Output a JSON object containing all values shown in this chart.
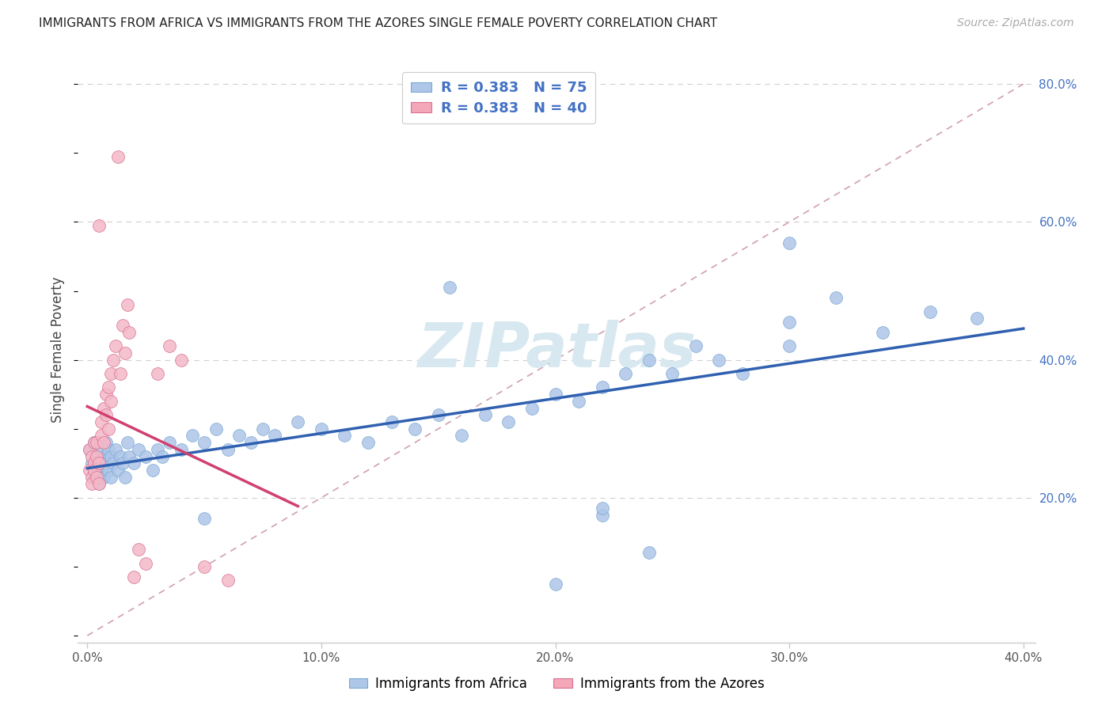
{
  "title": "IMMIGRANTS FROM AFRICA VS IMMIGRANTS FROM THE AZORES SINGLE FEMALE POVERTY CORRELATION CHART",
  "source": "Source: ZipAtlas.com",
  "ylabel": "Single Female Poverty",
  "xlim": [
    0.0,
    0.4
  ],
  "ylim": [
    0.0,
    0.84
  ],
  "xtick_vals": [
    0.0,
    0.1,
    0.2,
    0.3,
    0.4
  ],
  "xtick_labels": [
    "0.0%",
    "10.0%",
    "20.0%",
    "30.0%",
    "40.0%"
  ],
  "ytick_vals_right": [
    0.2,
    0.4,
    0.6,
    0.8
  ],
  "ytick_labels_right": [
    "20.0%",
    "40.0%",
    "60.0%",
    "80.0%"
  ],
  "legend1_color_face": "#aec6e8",
  "legend1_color_edge": "#7aa8d4",
  "legend2_color_face": "#f4a7b9",
  "legend2_color_edge": "#d87090",
  "line1_color": "#3060b0",
  "line2_color": "#d04070",
  "diagonal_color": "#d0a0b0",
  "watermark": "ZIPatlas",
  "scatter1_face": "#aec6e8",
  "scatter1_edge": "#7aa8d4",
  "scatter2_face": "#f4b8c8",
  "scatter2_edge": "#d87090",
  "africa_x": [
    0.001,
    0.002,
    0.003,
    0.003,
    0.004,
    0.004,
    0.005,
    0.005,
    0.006,
    0.006,
    0.007,
    0.007,
    0.008,
    0.008,
    0.009,
    0.009,
    0.01,
    0.01,
    0.011,
    0.012,
    0.013,
    0.014,
    0.015,
    0.016,
    0.017,
    0.018,
    0.02,
    0.022,
    0.025,
    0.028,
    0.03,
    0.032,
    0.035,
    0.04,
    0.045,
    0.05,
    0.055,
    0.06,
    0.065,
    0.07,
    0.075,
    0.08,
    0.09,
    0.1,
    0.11,
    0.12,
    0.13,
    0.14,
    0.15,
    0.16,
    0.17,
    0.18,
    0.19,
    0.2,
    0.21,
    0.22,
    0.23,
    0.24,
    0.25,
    0.26,
    0.27,
    0.28,
    0.3,
    0.32,
    0.34,
    0.36,
    0.38,
    0.155,
    0.22,
    0.3,
    0.3,
    0.2,
    0.24,
    0.22,
    0.05
  ],
  "africa_y": [
    0.27,
    0.25,
    0.23,
    0.28,
    0.26,
    0.24,
    0.25,
    0.22,
    0.27,
    0.24,
    0.26,
    0.23,
    0.28,
    0.25,
    0.24,
    0.27,
    0.26,
    0.23,
    0.25,
    0.27,
    0.24,
    0.26,
    0.25,
    0.23,
    0.28,
    0.26,
    0.25,
    0.27,
    0.26,
    0.24,
    0.27,
    0.26,
    0.28,
    0.27,
    0.29,
    0.28,
    0.3,
    0.27,
    0.29,
    0.28,
    0.3,
    0.29,
    0.31,
    0.3,
    0.29,
    0.28,
    0.31,
    0.3,
    0.32,
    0.29,
    0.32,
    0.31,
    0.33,
    0.35,
    0.34,
    0.36,
    0.38,
    0.4,
    0.38,
    0.42,
    0.4,
    0.38,
    0.57,
    0.49,
    0.44,
    0.47,
    0.46,
    0.505,
    0.175,
    0.455,
    0.42,
    0.075,
    0.12,
    0.185,
    0.17
  ],
  "azores_x": [
    0.001,
    0.001,
    0.002,
    0.002,
    0.002,
    0.003,
    0.003,
    0.003,
    0.004,
    0.004,
    0.004,
    0.005,
    0.005,
    0.005,
    0.006,
    0.006,
    0.007,
    0.007,
    0.008,
    0.008,
    0.009,
    0.009,
    0.01,
    0.01,
    0.011,
    0.012,
    0.013,
    0.014,
    0.015,
    0.016,
    0.017,
    0.018,
    0.02,
    0.022,
    0.025,
    0.03,
    0.035,
    0.04,
    0.05,
    0.06
  ],
  "azores_y": [
    0.27,
    0.24,
    0.26,
    0.23,
    0.22,
    0.25,
    0.28,
    0.24,
    0.26,
    0.23,
    0.28,
    0.595,
    0.25,
    0.22,
    0.31,
    0.29,
    0.33,
    0.28,
    0.35,
    0.32,
    0.36,
    0.3,
    0.38,
    0.34,
    0.4,
    0.42,
    0.695,
    0.38,
    0.45,
    0.41,
    0.48,
    0.44,
    0.085,
    0.125,
    0.105,
    0.38,
    0.42,
    0.4,
    0.1,
    0.08
  ]
}
